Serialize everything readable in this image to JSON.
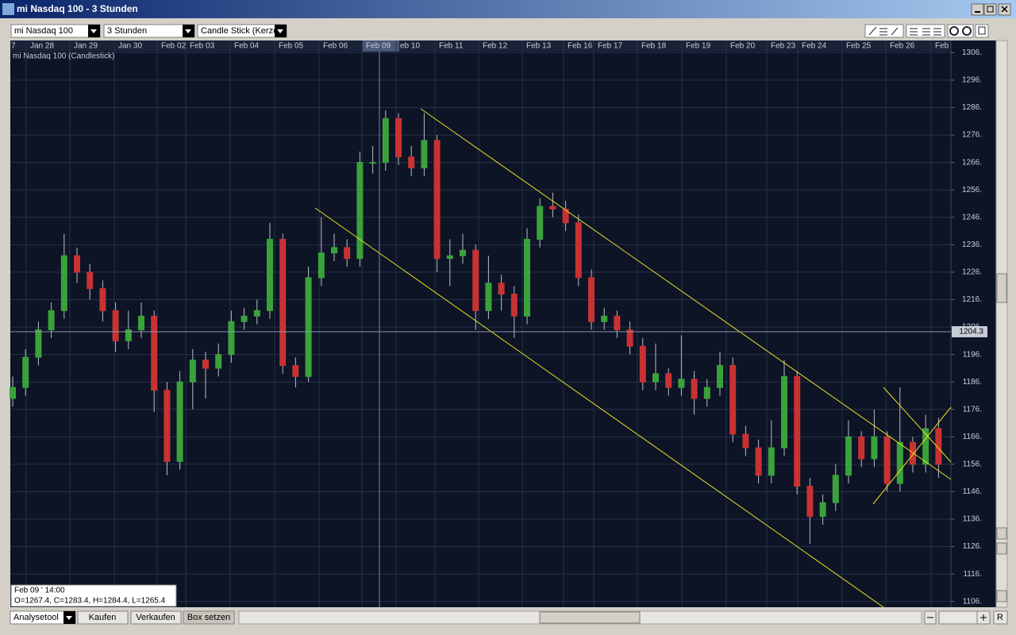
{
  "window": {
    "title": "mi Nasdaq 100 - 3 Stunden"
  },
  "toolbar": {
    "instrument": "mi Nasdaq 100",
    "interval": "3 Stunden",
    "chart_style": "Candle Stick (Kerze"
  },
  "chart_data": {
    "type": "candlestick",
    "title": "mi Nasdaq 100 (Candlestick)",
    "date_labels": [
      "7",
      "Jan 28",
      "Jan 29",
      "Jan 30",
      "Feb 02",
      "Feb 03",
      "Feb 04",
      "Feb 05",
      "Feb 06",
      "Feb 09",
      "eb 10",
      "Feb 11",
      "Feb 12",
      "Feb 13",
      "Feb 16",
      "Feb 17",
      "Feb 18",
      "Feb 19",
      "Feb 20",
      "Feb 23",
      "Feb 24",
      "Feb 25",
      "Feb 26",
      "Feb"
    ],
    "up_color": "#3aa23a",
    "down_color": "#c83232",
    "ylim": [
      1103.9,
      1306.4
    ],
    "yticks": [
      {
        "value": 1306,
        "label": "1306."
      },
      {
        "value": 1296,
        "label": "1296."
      },
      {
        "value": 1286,
        "label": "1286."
      },
      {
        "value": 1276,
        "label": "1276."
      },
      {
        "value": 1266,
        "label": "1266."
      },
      {
        "value": 1256,
        "label": "1256."
      },
      {
        "value": 1246,
        "label": "1246."
      },
      {
        "value": 1236,
        "label": "1236."
      },
      {
        "value": 1226,
        "label": "1226."
      },
      {
        "value": 1216,
        "label": "1216."
      },
      {
        "value": 1206,
        "label": "1206."
      },
      {
        "value": 1196,
        "label": "1196."
      },
      {
        "value": 1186,
        "label": "1186."
      },
      {
        "value": 1176,
        "label": "1176."
      },
      {
        "value": 1166,
        "label": "1166."
      },
      {
        "value": 1156,
        "label": "1156."
      },
      {
        "value": 1146,
        "label": "1146."
      },
      {
        "value": 1136,
        "label": "1136."
      },
      {
        "value": 1126,
        "label": "1126."
      },
      {
        "value": 1116,
        "label": "1116."
      },
      {
        "value": 1106,
        "label": "1106."
      }
    ],
    "grid": true,
    "crosshair_value": 1204.3,
    "open": [
      1180,
      1184,
      1195,
      1205,
      1212,
      1232,
      1226,
      1220,
      1212,
      1201,
      1205,
      1210,
      1183,
      1157,
      1186,
      1194,
      1191,
      1196,
      1208,
      1210,
      1212,
      1238,
      1192,
      1188,
      1224,
      1233,
      1235,
      1231,
      1266,
      1266,
      1282,
      1268,
      1264,
      1274,
      1231,
      1232,
      1234,
      1212,
      1222,
      1218,
      1210,
      1238,
      1250,
      1249,
      1244,
      1224,
      1208,
      1210,
      1205,
      1199,
      1186,
      1189,
      1184,
      1187,
      1180,
      1184,
      1192,
      1167,
      1162,
      1152,
      1162,
      1188,
      1148,
      1137,
      1142,
      1152,
      1166,
      1158,
      1166,
      1149,
      1164,
      1156,
      1169
    ],
    "high": [
      1188,
      1198,
      1208,
      1215,
      1240,
      1235,
      1229,
      1223,
      1215,
      1212,
      1215,
      1212,
      1186,
      1190,
      1198,
      1197,
      1200,
      1212,
      1213,
      1216,
      1244,
      1240,
      1195,
      1228,
      1246,
      1240,
      1238,
      1270,
      1272,
      1285,
      1284,
      1272,
      1284,
      1276,
      1238,
      1240,
      1236,
      1232,
      1225,
      1221,
      1242,
      1253,
      1255,
      1252,
      1247,
      1227,
      1213,
      1212,
      1208,
      1202,
      1200,
      1191,
      1203,
      1190,
      1187,
      1197,
      1195,
      1170,
      1165,
      1172,
      1194,
      1190,
      1151,
      1145,
      1156,
      1172,
      1168,
      1176,
      1168,
      1184,
      1166,
      1174,
      1173
    ],
    "low": [
      1177,
      1181,
      1192,
      1202,
      1209,
      1222,
      1216,
      1208,
      1197,
      1198,
      1202,
      1175,
      1152,
      1154,
      1176,
      1180,
      1188,
      1193,
      1205,
      1207,
      1209,
      1189,
      1184,
      1186,
      1221,
      1230,
      1228,
      1228,
      1262,
      1263,
      1265,
      1261,
      1261,
      1226,
      1221,
      1229,
      1205,
      1209,
      1212,
      1202,
      1207,
      1235,
      1246,
      1241,
      1221,
      1205,
      1205,
      1202,
      1196,
      1183,
      1183,
      1181,
      1181,
      1174,
      1177,
      1181,
      1164,
      1159,
      1149,
      1149,
      1159,
      1145,
      1127,
      1134,
      1139,
      1149,
      1155,
      1155,
      1146,
      1146,
      1153,
      1153,
      1151
    ],
    "close": [
      1184,
      1195,
      1205,
      1212,
      1232,
      1226,
      1220,
      1212,
      1201,
      1205,
      1210,
      1183,
      1157,
      1186,
      1194,
      1191,
      1196,
      1208,
      1210,
      1212,
      1238,
      1192,
      1188,
      1224,
      1233,
      1235,
      1231,
      1266,
      1266,
      1282,
      1268,
      1264,
      1274,
      1231,
      1232,
      1234,
      1212,
      1222,
      1218,
      1210,
      1238,
      1250,
      1249,
      1244,
      1224,
      1208,
      1210,
      1205,
      1199,
      1186,
      1189,
      1184,
      1187,
      1180,
      1184,
      1192,
      1167,
      1162,
      1152,
      1162,
      1188,
      1148,
      1137,
      1142,
      1152,
      1166,
      1158,
      1166,
      1149,
      1164,
      1156,
      1169,
      1156
    ]
  },
  "info_box": {
    "time": "Feb 09 ' 14:00",
    "ohlc": "O=1267.4, C=1283.4, H=1284.4, L=1265.4"
  },
  "bottom_bar": {
    "tool": "Analysetool",
    "buy": "Kaufen",
    "sell": "Verkaufen",
    "box": "Box setzen",
    "reset": "R"
  }
}
